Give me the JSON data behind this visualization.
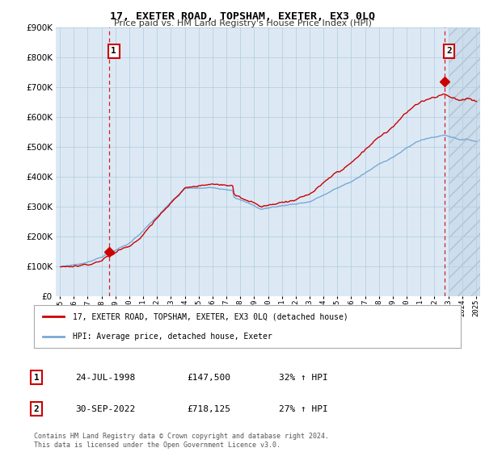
{
  "title": "17, EXETER ROAD, TOPSHAM, EXETER, EX3 0LQ",
  "subtitle": "Price paid vs. HM Land Registry's House Price Index (HPI)",
  "property_label": "17, EXETER ROAD, TOPSHAM, EXETER, EX3 0LQ (detached house)",
  "hpi_label": "HPI: Average price, detached house, Exeter",
  "sale1_date": "24-JUL-1998",
  "sale1_price": 147500,
  "sale1_hpi_pct": "32% ↑ HPI",
  "sale2_date": "30-SEP-2022",
  "sale2_price": 718125,
  "sale2_hpi_pct": "27% ↑ HPI",
  "footer": "Contains HM Land Registry data © Crown copyright and database right 2024.\nThis data is licensed under the Open Government Licence v3.0.",
  "line_color_property": "#cc0000",
  "line_color_hpi": "#7aa8d4",
  "plot_bg_color": "#dce9f5",
  "background_color": "#ffffff",
  "grid_color": "#b8cfe0",
  "ylim": [
    0,
    900000
  ],
  "yticks": [
    0,
    100000,
    200000,
    300000,
    400000,
    500000,
    600000,
    700000,
    800000,
    900000
  ],
  "xlim_start": 1994.7,
  "xlim_end": 2025.3,
  "hatch_start": 2023.0
}
